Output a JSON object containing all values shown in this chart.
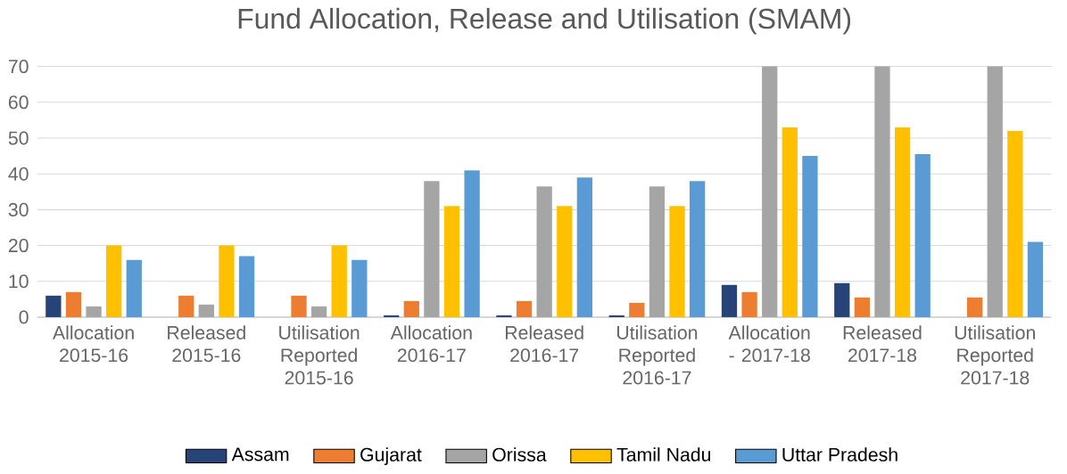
{
  "chart_data": {
    "type": "bar",
    "title": "Fund Allocation, Release and Utilisation (SMAM)",
    "categories": [
      "Allocation 2015-16",
      "Released 2015-16",
      "Utilisation Reported 2015-16",
      "Allocation 2016-17",
      "Released 2016-17",
      "Utilisation Reported 2016-17",
      "Allocation - 2017-18",
      "Released 2017-18",
      "Utilisation Reported 2017-18"
    ],
    "series": [
      {
        "name": "Assam",
        "color": "#264478",
        "values": [
          6,
          0,
          0,
          0.5,
          0.5,
          0.5,
          9,
          9.5,
          0
        ]
      },
      {
        "name": "Gujarat",
        "color": "#ed7d31",
        "values": [
          7,
          6,
          6,
          4.5,
          4.5,
          4,
          7,
          5.5,
          5.5
        ]
      },
      {
        "name": "Orissa",
        "color": "#a5a5a5",
        "values": [
          3,
          3.5,
          3,
          38,
          36.5,
          36.5,
          70,
          70,
          70
        ]
      },
      {
        "name": "Tamil Nadu",
        "color": "#ffc000",
        "values": [
          20,
          20,
          20,
          31,
          31,
          31,
          53,
          53,
          52
        ]
      },
      {
        "name": "Uttar Pradesh",
        "color": "#5b9bd5",
        "values": [
          16,
          17,
          16,
          41,
          39,
          38,
          45,
          45.5,
          21
        ]
      }
    ],
    "ylim": [
      0,
      70
    ],
    "yticks": [
      0,
      10,
      20,
      30,
      40,
      50,
      60,
      70
    ],
    "grid": "y",
    "legend": "bottom"
  }
}
